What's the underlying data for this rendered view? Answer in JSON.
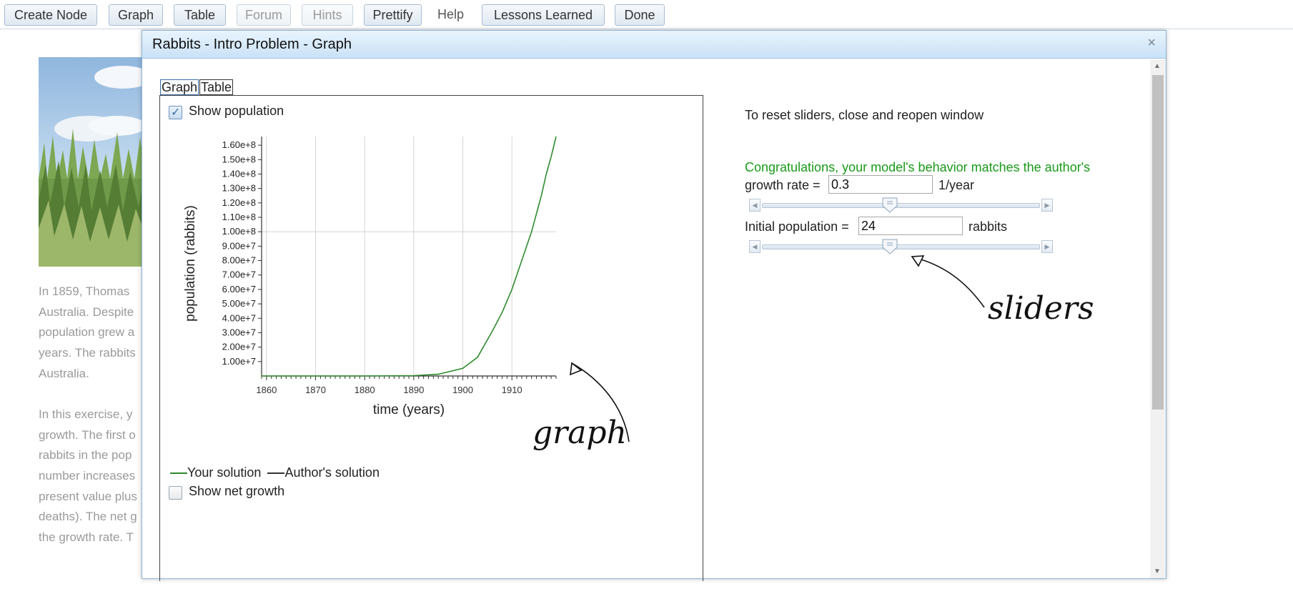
{
  "toolbar": {
    "buttons": [
      {
        "label": "Create Node",
        "enabled": true
      },
      {
        "label": "Graph",
        "enabled": true
      },
      {
        "label": "Table",
        "enabled": true
      },
      {
        "label": "Forum",
        "enabled": false
      },
      {
        "label": "Hints",
        "enabled": false
      },
      {
        "label": "Prettify",
        "enabled": true
      },
      {
        "label": "Help",
        "enabled": true
      },
      {
        "label": "Lessons Learned",
        "enabled": true
      },
      {
        "label": "Done",
        "enabled": true
      }
    ]
  },
  "background": {
    "paragraph1": [
      "In 1859, Thomas",
      "Australia. Despite",
      "population grew a",
      "years. The rabbits",
      "Australia."
    ],
    "paragraph2": [
      "In this exercise, y",
      "growth. The first o",
      "rabbits in the pop",
      "number increases",
      "present value plus",
      "deaths). The net g",
      "the growth rate. T"
    ]
  },
  "dialog": {
    "title": "Rabbits - Intro Problem - Graph",
    "close_glyph": "×",
    "tabs": [
      "Graph",
      "Table"
    ],
    "show_population_label": "Show population",
    "show_population_checked": true,
    "show_net_growth_label": "Show net growth",
    "show_net_growth_checked": false,
    "legend": {
      "your_solution": "Your solution",
      "authors_solution": "Author's solution",
      "your_color": "#2e8b2e",
      "author_color": "#333333"
    },
    "reset_note": "To reset sliders, close and reopen window",
    "congrats": "Congratulations, your model's behavior matches the author's",
    "growth_rate": {
      "label": "growth rate =",
      "value": "0.3",
      "unit": "1/year",
      "slider_fraction": 0.5
    },
    "initial_population": {
      "label": "Initial population =",
      "value": "24",
      "unit": "rabbits",
      "slider_fraction": 0.5
    }
  },
  "annotations": {
    "graph_label": "graph",
    "sliders_label": "sliders"
  },
  "chart_data": {
    "type": "line",
    "title": "",
    "xlabel": "time (years)",
    "ylabel": "population (rabbits)",
    "xlim": [
      1859,
      1919
    ],
    "ylim": [
      0,
      166000000
    ],
    "x_ticks": [
      1860,
      1870,
      1880,
      1890,
      1900,
      1910
    ],
    "y_ticks": [
      10000000,
      20000000,
      30000000,
      40000000,
      50000000,
      60000000,
      70000000,
      80000000,
      90000000,
      100000000,
      110000000,
      120000000,
      130000000,
      140000000,
      150000000,
      160000000
    ],
    "y_tick_labels": [
      "1.00e+7",
      "2.00e+7",
      "3.00e+7",
      "4.00e+7",
      "5.00e+7",
      "6.00e+7",
      "7.00e+7",
      "8.00e+7",
      "9.00e+7",
      "1.00e+8",
      "1.10e+8",
      "1.20e+8",
      "1.30e+8",
      "1.40e+8",
      "1.50e+8",
      "1.60e+8"
    ],
    "grid": "vertical lines at x ticks; horizontal line at 1.00e+8",
    "series": [
      {
        "name": "Your solution",
        "color": "#2e8b2e",
        "x": [
          1859,
          1870,
          1880,
          1890,
          1895,
          1900,
          1903,
          1906,
          1908,
          1910,
          1912,
          1914,
          1916,
          1917,
          1918,
          1919
        ],
        "y": [
          24,
          650,
          13000,
          260000,
          1170000,
          5300000,
          13000000,
          31000000,
          44000000,
          60000000,
          80000000,
          100000000,
          125000000,
          140000000,
          152000000,
          166000000
        ]
      }
    ]
  }
}
